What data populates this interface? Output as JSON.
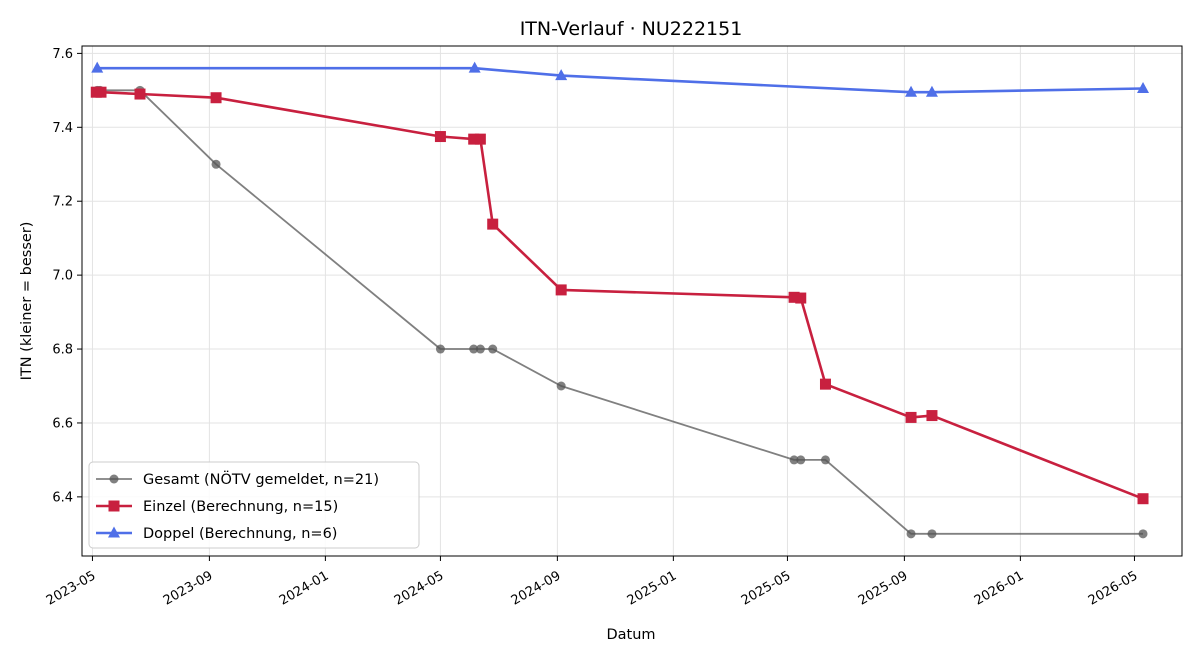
{
  "chart_data": {
    "type": "line",
    "title": "ITN-Verlauf · NU222151",
    "xlabel": "Datum",
    "ylabel": "ITN  (kleiner = besser)",
    "x_ticks": [
      "2023-05",
      "2023-09",
      "2024-01",
      "2024-05",
      "2024-09",
      "2025-01",
      "2025-05",
      "2025-09",
      "2026-01",
      "2026-05"
    ],
    "y_ticks": [
      "6.4",
      "6.6",
      "6.8",
      "7.0",
      "7.2",
      "7.4",
      "7.6"
    ],
    "xlim": [
      "2023-04-20",
      "2026-06-20"
    ],
    "ylim": [
      6.24,
      7.62
    ],
    "grid": true,
    "legend_position": "lower-left",
    "series": [
      {
        "name": "Gesamt (NÖTV gemeldet, n=21)",
        "color": "#555555",
        "marker": "circle",
        "points": [
          {
            "x": "2023-05-06",
            "y": 7.5
          },
          {
            "x": "2023-05-09",
            "y": 7.5
          },
          {
            "x": "2023-06-20",
            "y": 7.5
          },
          {
            "x": "2023-09-08",
            "y": 7.3
          },
          {
            "x": "2024-05-01",
            "y": 6.8
          },
          {
            "x": "2024-06-05",
            "y": 6.8
          },
          {
            "x": "2024-06-12",
            "y": 6.8
          },
          {
            "x": "2024-06-25",
            "y": 6.8
          },
          {
            "x": "2024-09-05",
            "y": 6.7
          },
          {
            "x": "2025-05-08",
            "y": 6.5
          },
          {
            "x": "2025-05-15",
            "y": 6.5
          },
          {
            "x": "2025-06-10",
            "y": 6.5
          },
          {
            "x": "2025-09-08",
            "y": 6.3
          },
          {
            "x": "2025-09-30",
            "y": 6.3
          },
          {
            "x": "2026-05-10",
            "y": 6.3
          }
        ]
      },
      {
        "name": "Einzel (Berechnung, n=15)",
        "color": "#c8203f",
        "marker": "square",
        "points": [
          {
            "x": "2023-05-05",
            "y": 7.495
          },
          {
            "x": "2023-05-10",
            "y": 7.495
          },
          {
            "x": "2023-06-20",
            "y": 7.49
          },
          {
            "x": "2023-09-08",
            "y": 7.48
          },
          {
            "x": "2024-05-01",
            "y": 7.375
          },
          {
            "x": "2024-06-05",
            "y": 7.368
          },
          {
            "x": "2024-06-12",
            "y": 7.368
          },
          {
            "x": "2024-06-25",
            "y": 7.138
          },
          {
            "x": "2024-09-05",
            "y": 6.96
          },
          {
            "x": "2025-05-08",
            "y": 6.94
          },
          {
            "x": "2025-05-15",
            "y": 6.938
          },
          {
            "x": "2025-06-10",
            "y": 6.705
          },
          {
            "x": "2025-09-08",
            "y": 6.615
          },
          {
            "x": "2025-09-30",
            "y": 6.62
          },
          {
            "x": "2026-05-10",
            "y": 6.395
          }
        ]
      },
      {
        "name": "Doppel (Berechnung, n=6)",
        "color": "#4f6fe8",
        "marker": "triangle",
        "points": [
          {
            "x": "2023-05-06",
            "y": 7.56
          },
          {
            "x": "2024-06-06",
            "y": 7.56
          },
          {
            "x": "2024-09-05",
            "y": 7.54
          },
          {
            "x": "2025-09-08",
            "y": 7.495
          },
          {
            "x": "2025-09-30",
            "y": 7.495
          },
          {
            "x": "2026-05-10",
            "y": 7.505
          }
        ]
      }
    ]
  }
}
